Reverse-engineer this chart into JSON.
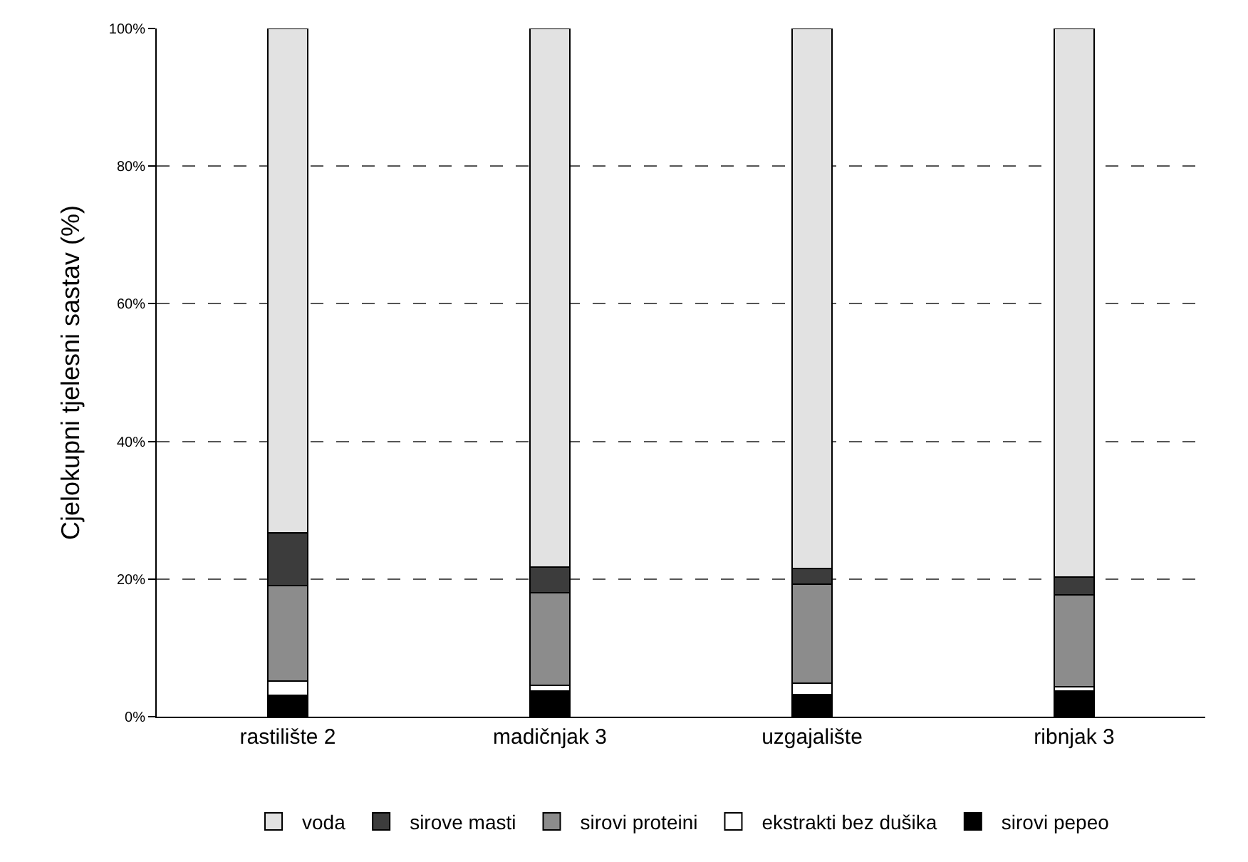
{
  "chart_data": {
    "type": "bar",
    "stacked": true,
    "ylabel": "Cjelokupni tjelesni sastav (%)",
    "categories": [
      "rastilište 2",
      "madičnjak 3",
      "uzgajalište",
      "ribnjak 3"
    ],
    "series": [
      {
        "name": "sirovi pepeo",
        "color": "#000000",
        "values": [
          3.1,
          3.7,
          3.2,
          3.7
        ]
      },
      {
        "name": "ekstrakti bez dušika",
        "color": "#ffffff",
        "values": [
          2.1,
          0.9,
          1.7,
          0.6
        ]
      },
      {
        "name": "sirovi proteini",
        "color": "#8c8c8c",
        "values": [
          13.8,
          13.4,
          14.4,
          13.4
        ]
      },
      {
        "name": "sirove masti",
        "color": "#3c3c3c",
        "values": [
          7.7,
          3.7,
          2.2,
          2.6
        ]
      },
      {
        "name": "voda",
        "color": "#e2e2e2",
        "values": [
          73.3,
          78.3,
          78.5,
          79.7
        ]
      }
    ],
    "ylim": [
      0,
      100
    ],
    "yticks": [
      {
        "value": 0,
        "label": "0%"
      },
      {
        "value": 20,
        "label": "20%"
      },
      {
        "value": 40,
        "label": "40%"
      },
      {
        "value": 60,
        "label": "60%"
      },
      {
        "value": 80,
        "label": "80%"
      },
      {
        "value": 100,
        "label": "100%"
      }
    ],
    "grid": "y",
    "legend": "bottom"
  }
}
